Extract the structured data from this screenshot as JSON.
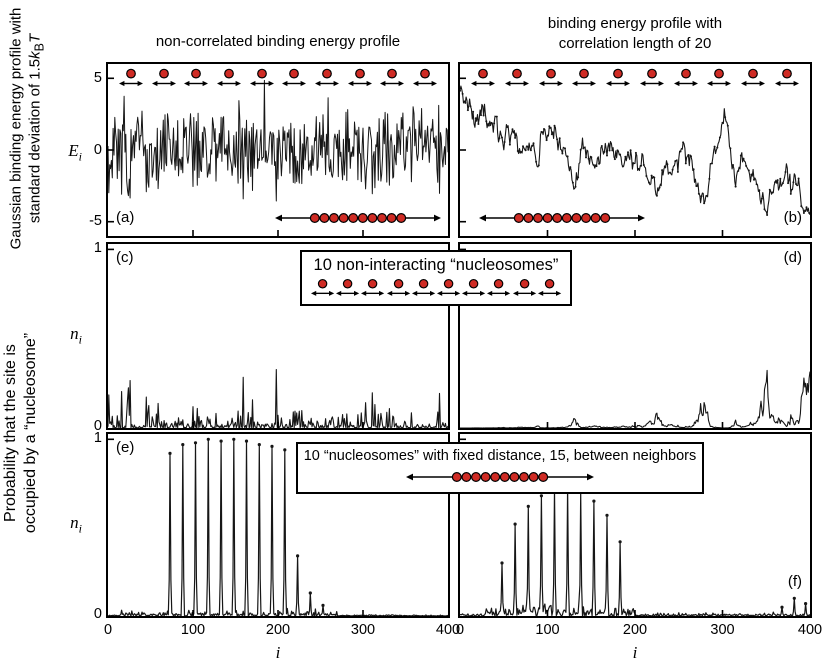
{
  "figure": {
    "bg": "#ffffff",
    "accent_red": "#cf2b24",
    "line_color": "#161616"
  },
  "titles": {
    "col_left": "non-correlated binding energy profile",
    "col_right_line1": "binding energy profile with",
    "col_right_line2": "correlation length of 20"
  },
  "left_labels": {
    "top_line1": "Gaussian binding energy profile with",
    "top_line2_prefix": "standard deviation of  1.5",
    "top_k": "k",
    "top_sub": "B",
    "top_T": "T",
    "bottom_line1": "Probability that the site is",
    "bottom_line2": "occupied by a “nucleosome”"
  },
  "axes": {
    "y_top_symbol": "E",
    "y_top_sub": "i",
    "y_mid_symbol": "n",
    "y_mid_sub": "i",
    "x_symbol": "i",
    "y_ticks_top": [
      "5",
      "0",
      "-5"
    ],
    "y_ticks_prob": [
      "1",
      "0"
    ],
    "x_ticks": [
      "0",
      "100",
      "200",
      "300",
      "400"
    ]
  },
  "panel_labels": {
    "a": "(a)",
    "b": "(b)",
    "c": "(c)",
    "d": "(d)",
    "e": "(e)",
    "f": "(f)"
  },
  "annotations": {
    "mid_box_text": "10 non-interacting “nucleosomes”",
    "bottom_box_text": "10 “nucleosomes” with fixed distance, 15, between neighbors",
    "nucleosome_count": 10
  },
  "chart_data": [
    {
      "panel": "a",
      "panel_label": "(a)",
      "type": "line",
      "title": "non-correlated binding energy profile",
      "xlabel": "i",
      "ylabel": "Ei (Gaussian binding energy, units of kBT)",
      "x_range": [
        0,
        400
      ],
      "y_range": [
        -6,
        6
      ],
      "y_ticks": [
        5,
        0,
        -5
      ],
      "x_ticks": [
        0,
        100,
        200,
        300,
        400
      ],
      "description": "Gaussian white-noise binding energy profile, mean 0, standard deviation 1.5 kBT, sites i = 0..400",
      "series_spec": {
        "kind": "gaussian_white_noise",
        "n_points": 401,
        "mean": 0,
        "sigma": 1.5,
        "seed": 101
      },
      "stroke_width": 1
    },
    {
      "panel": "b",
      "panel_label": "(b)",
      "type": "line",
      "title": "binding energy profile with correlation length of 20",
      "xlabel": "i",
      "ylabel": "Ei (Gaussian binding energy, units of kBT)",
      "x_range": [
        0,
        400
      ],
      "y_range": [
        -6,
        6
      ],
      "y_ticks": [
        5,
        0,
        -5
      ],
      "x_ticks": [
        0,
        100,
        200,
        300,
        400
      ],
      "description": "Correlated Gaussian binding energy profile, correlation length 20, standard deviation 1.5 kBT",
      "series_spec": {
        "kind": "gaussian_ar1",
        "n_points": 401,
        "mean": 0,
        "sigma": 1.5,
        "correlation_length": 20,
        "seed": 7
      },
      "markers": "dots",
      "stroke_width": 1.1
    },
    {
      "panel": "c",
      "panel_label": "(c)",
      "type": "line",
      "xlabel": "i",
      "ylabel": "ni (probability site occupied by nucleosome)",
      "x_range": [
        0,
        400
      ],
      "y_range": [
        0,
        1.03
      ],
      "y_ticks": [
        1
      ],
      "x_ticks": [
        0,
        100,
        200,
        300,
        400
      ],
      "description": "Occupancy of 10 non-interacting nucleosomes on the non-correlated energy profile of panel (a): many narrow spikes, tallest near 1",
      "series_spec": {
        "kind": "boltzmann_occupancy",
        "source_panel": "a",
        "nucleosomes": 10,
        "clip": 1
      },
      "stroke_width": 1.1
    },
    {
      "panel": "d",
      "panel_label": "(d)",
      "type": "line",
      "xlabel": "i",
      "ylabel": "ni (probability site occupied by nucleosome)",
      "x_range": [
        0,
        400
      ],
      "y_range": [
        0,
        1.03
      ],
      "y_ticks": [
        1
      ],
      "x_ticks": [
        0,
        100,
        200,
        300,
        400
      ],
      "description": "Occupancy of 10 non-interacting nucleosomes on the correlated energy profile of panel (b): broad peak near i of about 85, smaller bumps elsewhere",
      "series_spec": {
        "kind": "boltzmann_occupancy",
        "source_panel": "b",
        "nucleosomes": 10,
        "clip": 1
      },
      "stroke_width": 1.1
    },
    {
      "panel": "e",
      "panel_label": "(e)",
      "type": "line",
      "xlabel": "i",
      "ylabel": "ni (probability site occupied by nucleosome)",
      "x_range": [
        0,
        400
      ],
      "y_range": [
        0,
        1.03
      ],
      "y_ticks": [
        1
      ],
      "x_ticks": [
        0,
        100,
        200,
        300,
        400
      ],
      "description": "10 nucleosomes with fixed distance 15 between neighbors on profile (a): sharp occupancy peaks every 15 sites from about i=73 to i=208, smaller trailing peaks",
      "series_spec": {
        "kind": "spike_train",
        "n_points": 401,
        "spacing": 15,
        "shoulder": 0.22,
        "main_spikes": [
          {
            "i": 73,
            "h": 0.92
          },
          {
            "i": 88,
            "h": 0.97
          },
          {
            "i": 103,
            "h": 0.98
          },
          {
            "i": 118,
            "h": 1.0
          },
          {
            "i": 133,
            "h": 0.99
          },
          {
            "i": 148,
            "h": 1.0
          },
          {
            "i": 163,
            "h": 0.99
          },
          {
            "i": 178,
            "h": 0.97
          },
          {
            "i": 193,
            "h": 0.96
          },
          {
            "i": 208,
            "h": 0.94
          }
        ],
        "extra_spikes": [
          {
            "i": 223,
            "h": 0.34
          },
          {
            "i": 238,
            "h": 0.13
          },
          {
            "i": 253,
            "h": 0.06
          }
        ],
        "noise": {
          "seed": 303,
          "amp": 0.012,
          "from": 15,
          "to": 270
        }
      },
      "markers": "spikes",
      "stroke_width": 1.2
    },
    {
      "panel": "f",
      "panel_label": "(f)",
      "type": "line",
      "xlabel": "i",
      "ylabel": "ni (probability site occupied by nucleosome)",
      "x_range": [
        0,
        400
      ],
      "y_range": [
        0,
        1.03
      ],
      "y_ticks": [
        1
      ],
      "x_ticks": [
        0,
        100,
        200,
        300,
        400
      ],
      "description": "10 nucleosomes with fixed distance 15 on profile (b): comb of peaks (heights about 0.3 to 0.73) between i=48 and i=183, small bumps near i=370-395",
      "series_spec": {
        "kind": "spike_train",
        "n_points": 401,
        "spacing": 15,
        "shoulder": 0.25,
        "main_spikes": [
          {
            "i": 48,
            "h": 0.3
          },
          {
            "i": 63,
            "h": 0.52
          },
          {
            "i": 78,
            "h": 0.62
          },
          {
            "i": 93,
            "h": 0.68
          },
          {
            "i": 108,
            "h": 0.72
          },
          {
            "i": 123,
            "h": 0.73
          },
          {
            "i": 138,
            "h": 0.7
          },
          {
            "i": 153,
            "h": 0.65
          },
          {
            "i": 168,
            "h": 0.57
          },
          {
            "i": 183,
            "h": 0.42
          }
        ],
        "extra_spikes": [
          {
            "i": 368,
            "h": 0.05
          },
          {
            "i": 382,
            "h": 0.1
          },
          {
            "i": 395,
            "h": 0.07
          }
        ],
        "noise": {
          "seed": 404,
          "amp": 0.03,
          "from": 30,
          "to": 200
        }
      },
      "markers": "spikes",
      "stroke_width": 1.2
    }
  ]
}
